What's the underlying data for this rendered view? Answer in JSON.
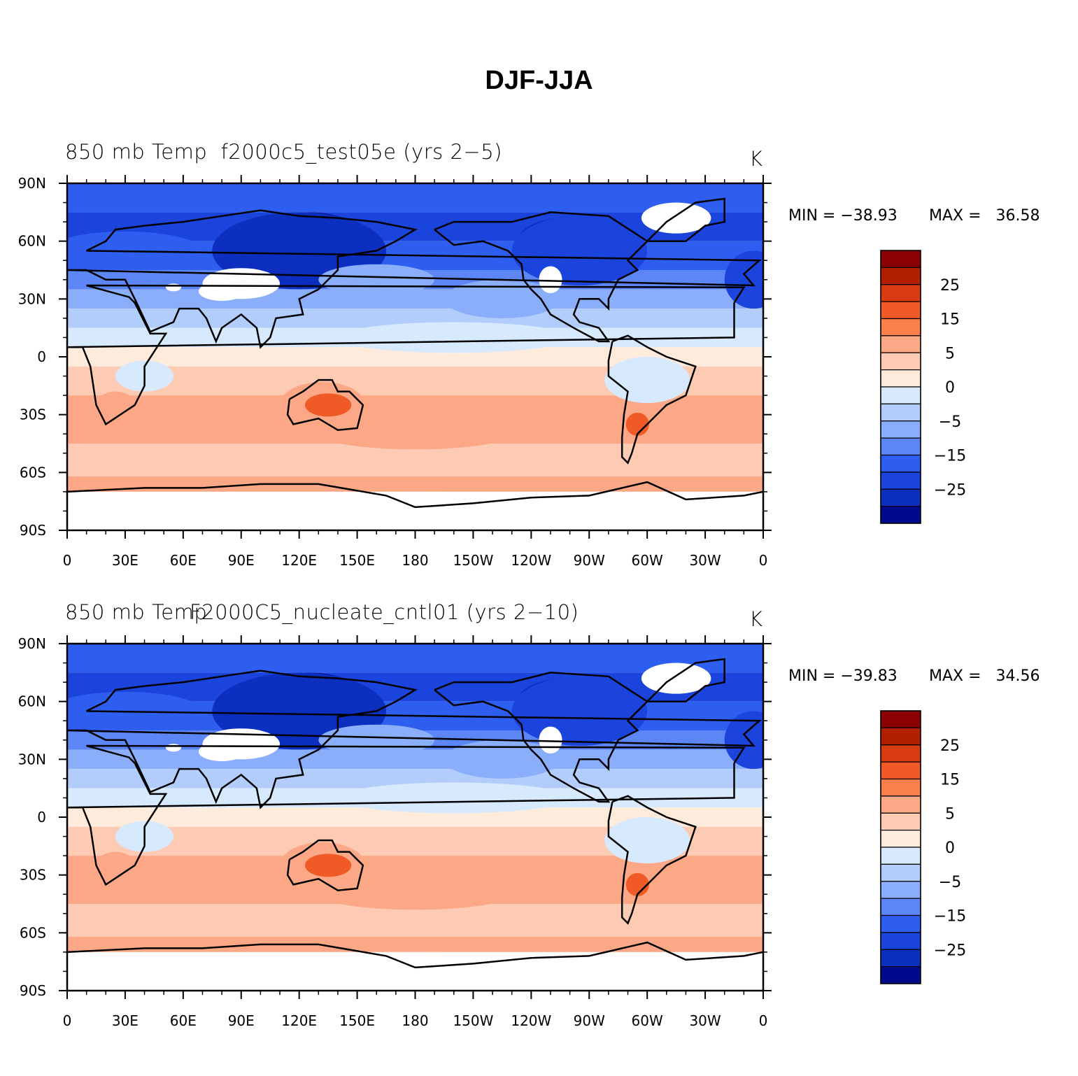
{
  "figure_title": "DJF-JJA",
  "chart_data": [
    {
      "type": "heatmap",
      "title": "850 mb Temp  f2000c5_test05e (yrs 2−5)",
      "units": "K",
      "min_label": "MIN = −38.93",
      "max_label": "MAX =   36.58",
      "lat_ticks": [
        "90N",
        "60N",
        "30N",
        "0",
        "30S",
        "60S",
        "90S"
      ],
      "lon_ticks": [
        "0",
        "30E",
        "60E",
        "90E",
        "120E",
        "150E",
        "180",
        "150W",
        "120W",
        "90W",
        "60W",
        "30W",
        "0"
      ],
      "colorbar_labels": [
        "25",
        "15",
        "5",
        "0",
        "−5",
        "−15",
        "−25"
      ]
    },
    {
      "type": "heatmap",
      "title_overlap_a": "850 mb Temp",
      "title": "F2000C5_nucleate_cntl01 (yrs 2−10)",
      "units": "K",
      "min_label": "MIN = −39.83",
      "max_label": "MAX =   34.56",
      "lat_ticks": [
        "90N",
        "60N",
        "30N",
        "0",
        "30S",
        "60S",
        "90S"
      ],
      "lon_ticks": [
        "0",
        "30E",
        "60E",
        "90E",
        "120E",
        "150E",
        "180",
        "150W",
        "120W",
        "90W",
        "60W",
        "30W",
        "0"
      ],
      "colorbar_labels": [
        "25",
        "15",
        "5",
        "0",
        "−5",
        "−15",
        "−25"
      ]
    }
  ],
  "colorbar_colors": [
    "#8b0000",
    "#b22000",
    "#d83b12",
    "#f05a26",
    "#fb7f4b",
    "#fca886",
    "#fdcbb3",
    "#feebdc",
    "#d6e9fd",
    "#b2cdfb",
    "#8aaef9",
    "#5c86f5",
    "#2e5ef0",
    "#1a44dc",
    "#0c2fc0",
    "#000a8c"
  ]
}
